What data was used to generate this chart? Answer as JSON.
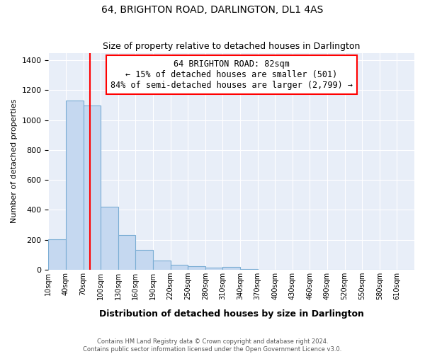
{
  "title": "64, BRIGHTON ROAD, DARLINGTON, DL1 4AS",
  "subtitle": "Size of property relative to detached houses in Darlington",
  "xlabel": "Distribution of detached houses by size in Darlington",
  "ylabel": "Number of detached properties",
  "bin_labels": [
    "10sqm",
    "40sqm",
    "70sqm",
    "100sqm",
    "130sqm",
    "160sqm",
    "190sqm",
    "220sqm",
    "250sqm",
    "280sqm",
    "310sqm",
    "340sqm",
    "370sqm",
    "400sqm",
    "430sqm",
    "460sqm",
    "490sqm",
    "520sqm",
    "550sqm",
    "580sqm",
    "610sqm"
  ],
  "bin_starts": [
    10,
    40,
    70,
    100,
    130,
    160,
    190,
    220,
    250,
    280,
    310,
    340,
    370,
    400,
    430,
    460,
    490,
    520,
    550,
    580,
    610
  ],
  "bar_heights": [
    205,
    1130,
    1100,
    420,
    230,
    130,
    60,
    35,
    25,
    15,
    20,
    5,
    0,
    0,
    0,
    0,
    0,
    0,
    0,
    0,
    0
  ],
  "bar_color": "#c5d8f0",
  "bar_edge_color": "#7aadd4",
  "red_line_x": 82,
  "annotation_text": "64 BRIGHTON ROAD: 82sqm\n← 15% of detached houses are smaller (501)\n84% of semi-detached houses are larger (2,799) →",
  "ylim": [
    0,
    1450
  ],
  "footnote1": "Contains HM Land Registry data © Crown copyright and database right 2024.",
  "footnote2": "Contains public sector information licensed under the Open Government Licence v3.0.",
  "background_color": "#e8eef8",
  "grid_color": "#ffffff",
  "outer_bg": "#ffffff"
}
